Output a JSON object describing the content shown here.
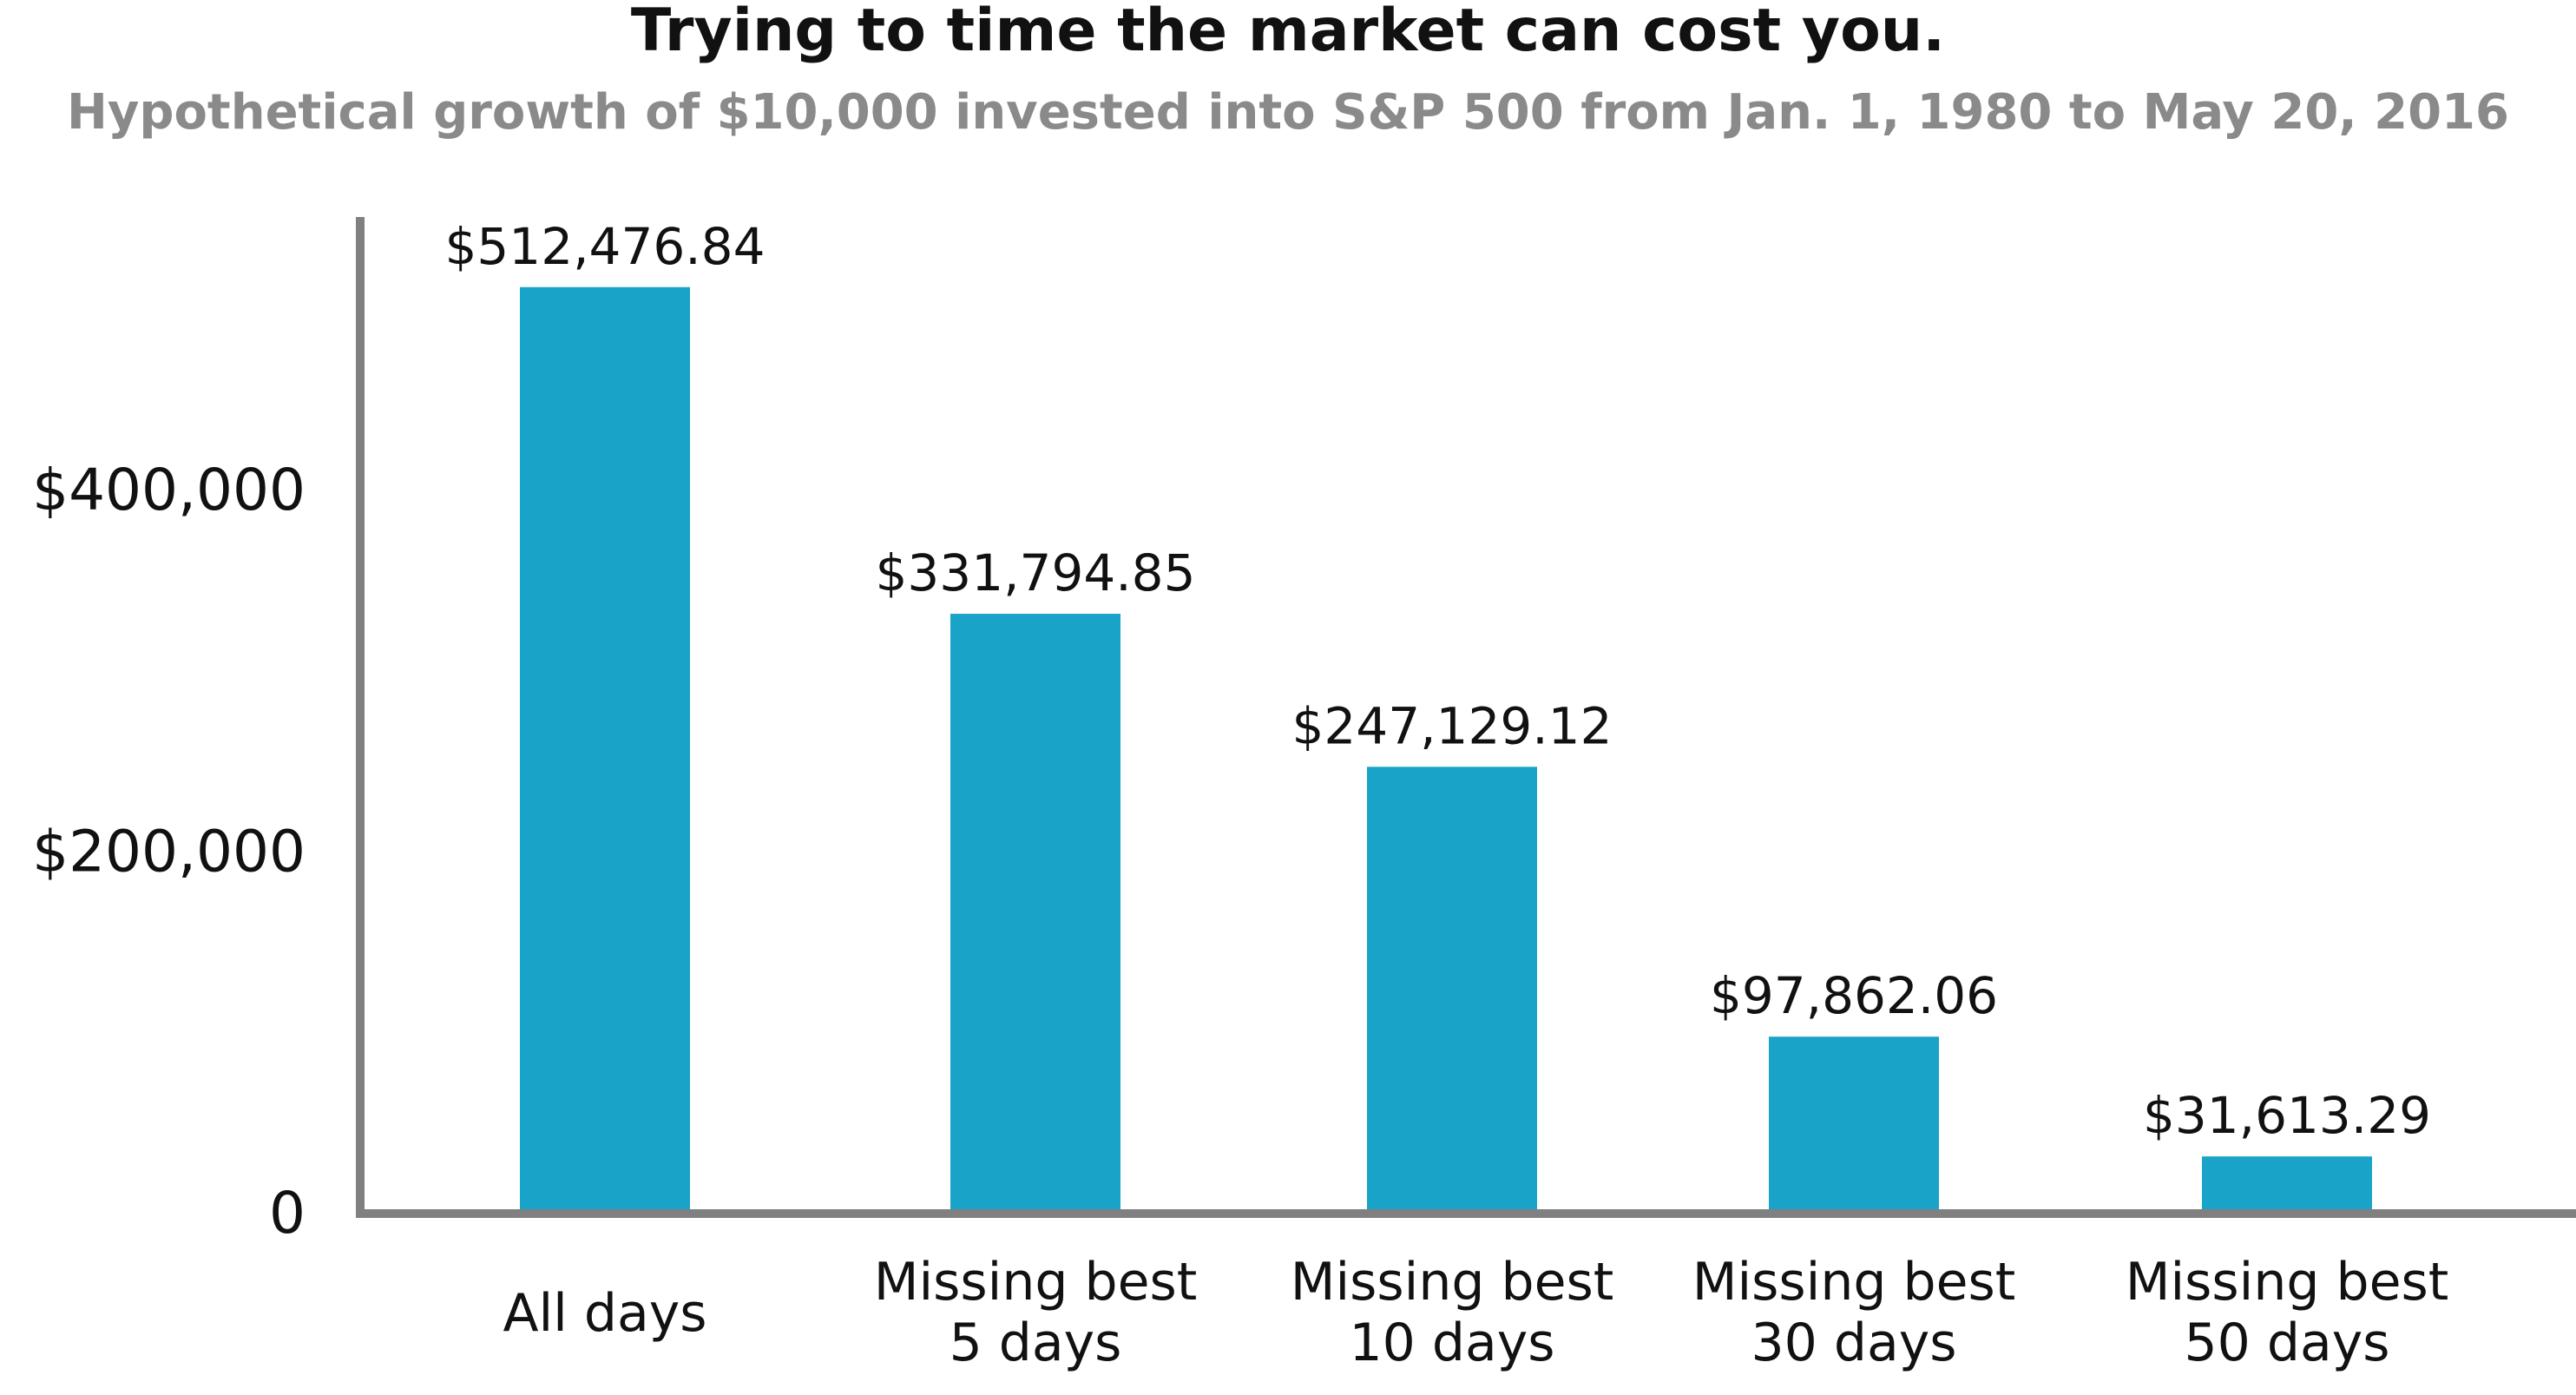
{
  "chart_data": {
    "type": "bar",
    "title": "Trying to time the market can cost you.",
    "subtitle": "Hypothetical growth of $10,000 invested into S&P 500 from Jan. 1, 1980 to May 20, 2016",
    "categories": [
      [
        "All days"
      ],
      [
        "Missing best",
        "5 days"
      ],
      [
        "Missing best",
        "10 days"
      ],
      [
        "Missing best",
        "30 days"
      ],
      [
        "Missing best",
        "50 days"
      ]
    ],
    "values": [
      512476.84,
      331794.85,
      247129.12,
      97862.06,
      31613.29
    ],
    "value_labels": [
      "$512,476.84",
      "$331,794.85",
      "$247,129.12",
      "$97,862.06",
      "$31,613.29"
    ],
    "y_ticks": [
      {
        "value": 0,
        "label": "0"
      },
      {
        "value": 200000,
        "label": "$200,000"
      },
      {
        "value": 400000,
        "label": "$400,000"
      }
    ],
    "ylim": [
      0,
      575000
    ],
    "xlabel": "",
    "ylabel": "",
    "grid": false,
    "colors": {
      "bar": "#1aa3c8",
      "axis": "#808080",
      "title": "#111111",
      "subtitle": "#8a8a8a",
      "text": "#111111"
    }
  }
}
